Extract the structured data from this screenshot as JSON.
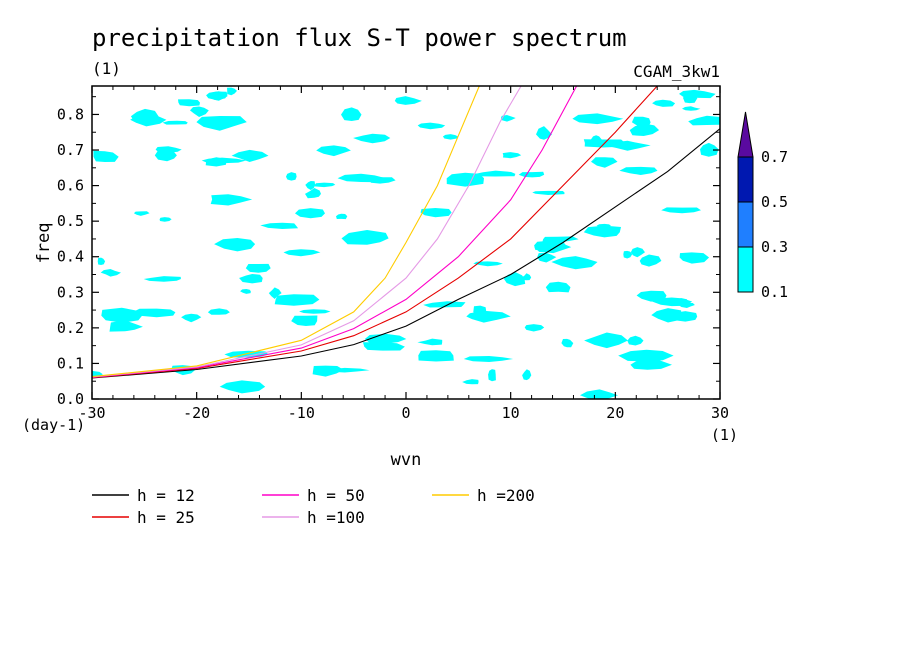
{
  "chart_data": {
    "type": "line",
    "title": "precipitation flux S-T power spectrum",
    "subtitle_left": "(1)",
    "subtitle_right": "CGAM_3kw1",
    "xlabel": "wvn",
    "ylabel": "freq",
    "x_unit": "(1)",
    "y_unit": "(day-1)",
    "xlim": [
      -30,
      30
    ],
    "ylim": [
      0,
      0.88
    ],
    "xticks": [
      -30,
      -20,
      -10,
      0,
      10,
      20,
      30
    ],
    "yticks": [
      0.0,
      0.1,
      0.2,
      0.3,
      0.4,
      0.5,
      0.6,
      0.7,
      0.8
    ],
    "ytick_labels": [
      "0.0",
      "0.1",
      "0.2",
      "0.3",
      "0.4",
      "0.5",
      "0.6",
      "0.7",
      "0.8"
    ],
    "series": [
      {
        "name": "h = 12",
        "color": "#000000",
        "x": [
          -30,
          -20,
          -10,
          -5,
          0,
          5,
          10,
          15,
          20,
          25,
          30
        ],
        "y": [
          0.059,
          0.083,
          0.121,
          0.153,
          0.205,
          0.28,
          0.35,
          0.44,
          0.54,
          0.64,
          0.76
        ]
      },
      {
        "name": "h = 25",
        "color": "#e60000",
        "x": [
          -30,
          -20,
          -10,
          -5,
          0,
          5,
          10,
          15,
          20,
          24
        ],
        "y": [
          0.06,
          0.086,
          0.135,
          0.178,
          0.245,
          0.34,
          0.45,
          0.6,
          0.75,
          0.88
        ]
      },
      {
        "name": "h = 50",
        "color": "#ff00c8",
        "x": [
          -30,
          -20,
          -10,
          -5,
          0,
          5,
          10,
          13,
          16.3
        ],
        "y": [
          0.061,
          0.088,
          0.143,
          0.198,
          0.28,
          0.4,
          0.56,
          0.7,
          0.88
        ]
      },
      {
        "name": "h =100",
        "color": "#e59ae6",
        "x": [
          -30,
          -20,
          -10,
          -5,
          0,
          3,
          6,
          9,
          11
        ],
        "y": [
          0.062,
          0.09,
          0.152,
          0.22,
          0.34,
          0.45,
          0.6,
          0.78,
          0.88
        ]
      },
      {
        "name": "h =200",
        "color": "#ffcc00",
        "x": [
          -30,
          -20,
          -10,
          -5,
          -2,
          0,
          3,
          5,
          7
        ],
        "y": [
          0.063,
          0.093,
          0.165,
          0.245,
          0.34,
          0.44,
          0.6,
          0.74,
          0.88
        ]
      }
    ],
    "shading": {
      "levels": [
        "0.1",
        "0.3",
        "0.5",
        "0.7"
      ],
      "colors": [
        "#00ffff",
        "#1f7fff",
        "#0018b0",
        "#5a0aa0"
      ],
      "patches_color": "#00ffff"
    },
    "legend_placement": "bottom"
  }
}
